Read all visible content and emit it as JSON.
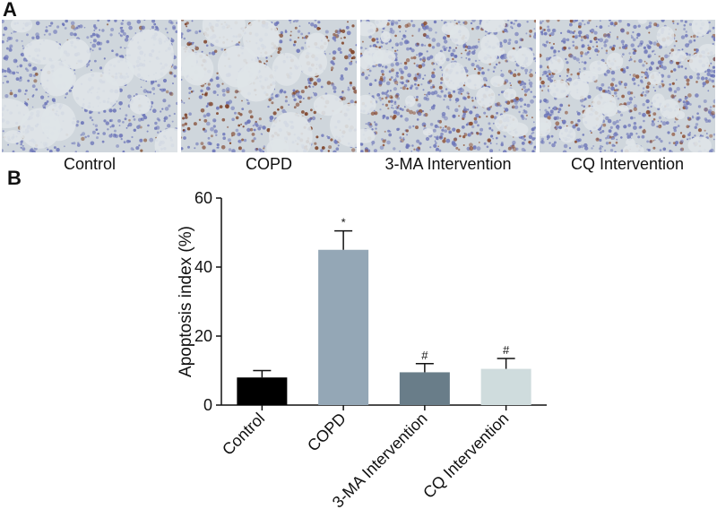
{
  "panels": {
    "a": "A",
    "b": "B"
  },
  "micrographs": [
    {
      "label": "Control",
      "stain": "light"
    },
    {
      "label": "COPD",
      "stain": "dense"
    },
    {
      "label": "3-MA Intervention",
      "stain": "fine"
    },
    {
      "label": "CQ Intervention",
      "stain": "fine"
    }
  ],
  "colors": {
    "tissue_blue": "#6b74b8",
    "stain_brown": "#7a3a1e",
    "background": "#cfd6dc"
  },
  "chart_data": {
    "type": "bar",
    "categories": [
      "Control",
      "COPD",
      "3-MA Intervention",
      "CQ Intervention"
    ],
    "values": [
      8,
      45,
      9.5,
      10.5
    ],
    "errors": [
      2,
      5.5,
      2.5,
      3
    ],
    "significance": [
      "",
      "*",
      "#",
      "#"
    ],
    "colors": [
      "#000000",
      "#94a7b6",
      "#697d89",
      "#cfdcdd"
    ],
    "title": "",
    "xlabel": "",
    "ylabel": "Apoptosis index (%)",
    "ylim": [
      0,
      60
    ],
    "yticks": [
      0,
      20,
      40,
      60
    ],
    "grid": false
  }
}
